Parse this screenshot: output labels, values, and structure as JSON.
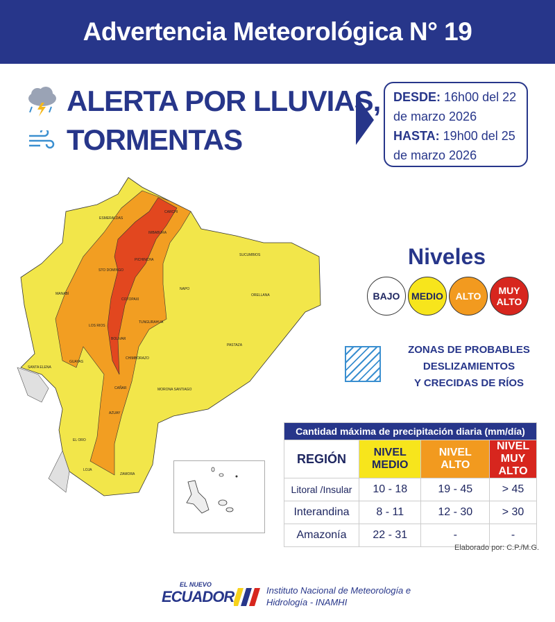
{
  "header": {
    "title": "Advertencia Meteorológica N° 19"
  },
  "alert": {
    "line1": "ALERTA POR LLUVIAS,",
    "line2": "TORMENTAS",
    "icons": [
      "storm-cloud-icon",
      "wind-icon"
    ]
  },
  "validity": {
    "from_label": "DESDE:",
    "from_value": "16h00 del 22 de marzo 2026",
    "to_label": "HASTA:",
    "to_value": "19h00 del 25 de marzo 2026"
  },
  "levels": {
    "title": "Niveles",
    "items": [
      {
        "label": "BAJO",
        "color": "#ffffff"
      },
      {
        "label": "MEDIO",
        "color": "#f7e51c"
      },
      {
        "label": "ALTO",
        "color": "#f29a1f"
      },
      {
        "label": "MUY ALTO",
        "color": "#d7261e"
      }
    ]
  },
  "landslide": {
    "line1": "ZONAS DE PROBABLES",
    "line2": "DESLIZAMIENTOS",
    "line3": "Y CRECIDAS DE RÍOS"
  },
  "map": {
    "provinces": [
      "ESMERALDAS",
      "CARCHI",
      "IMBABURA",
      "SUCUMBIOS",
      "PICHINCHA",
      "STO DOMINGO",
      "NAPO",
      "ORELLANA",
      "MANABÍ",
      "COTOPAXI",
      "LOS RIOS",
      "TUNGURAHUA",
      "BOLIVAR",
      "PASTAZA",
      "SANTA ELENA",
      "GUAYAS",
      "CHIMBORAZO",
      "CAÑAR",
      "MORONA SANTIAGO",
      "AZUAY",
      "EL ORO",
      "LOJA",
      "ZAMORA"
    ],
    "colors": {
      "medio": "#f2e64a",
      "alto": "#f29e22",
      "muy_alto": "#e2471f",
      "bajo": "#e0e0e0"
    }
  },
  "table": {
    "caption": "Cantidad máxima de precipitación diaria (mm/día)",
    "headers": [
      "REGIÓN",
      "NIVEL MEDIO",
      "NIVEL ALTO",
      "NIVEL MUY ALTO"
    ],
    "rows": [
      [
        "Litoral /Insular",
        "10 - 18",
        "19 - 45",
        "> 45"
      ],
      [
        "Interandina",
        "8 - 11",
        "12 - 30",
        "> 30"
      ],
      [
        "Amazonía",
        "22 - 31",
        "-",
        "-"
      ]
    ]
  },
  "credit": "Elaborado por: C.P./M.G.",
  "footer": {
    "logo_small": "EL NUEVO",
    "logo_big": "ECUADOR",
    "line1": "Instituto Nacional de Meteorología e",
    "line2": "Hidrología - INAMHI"
  }
}
